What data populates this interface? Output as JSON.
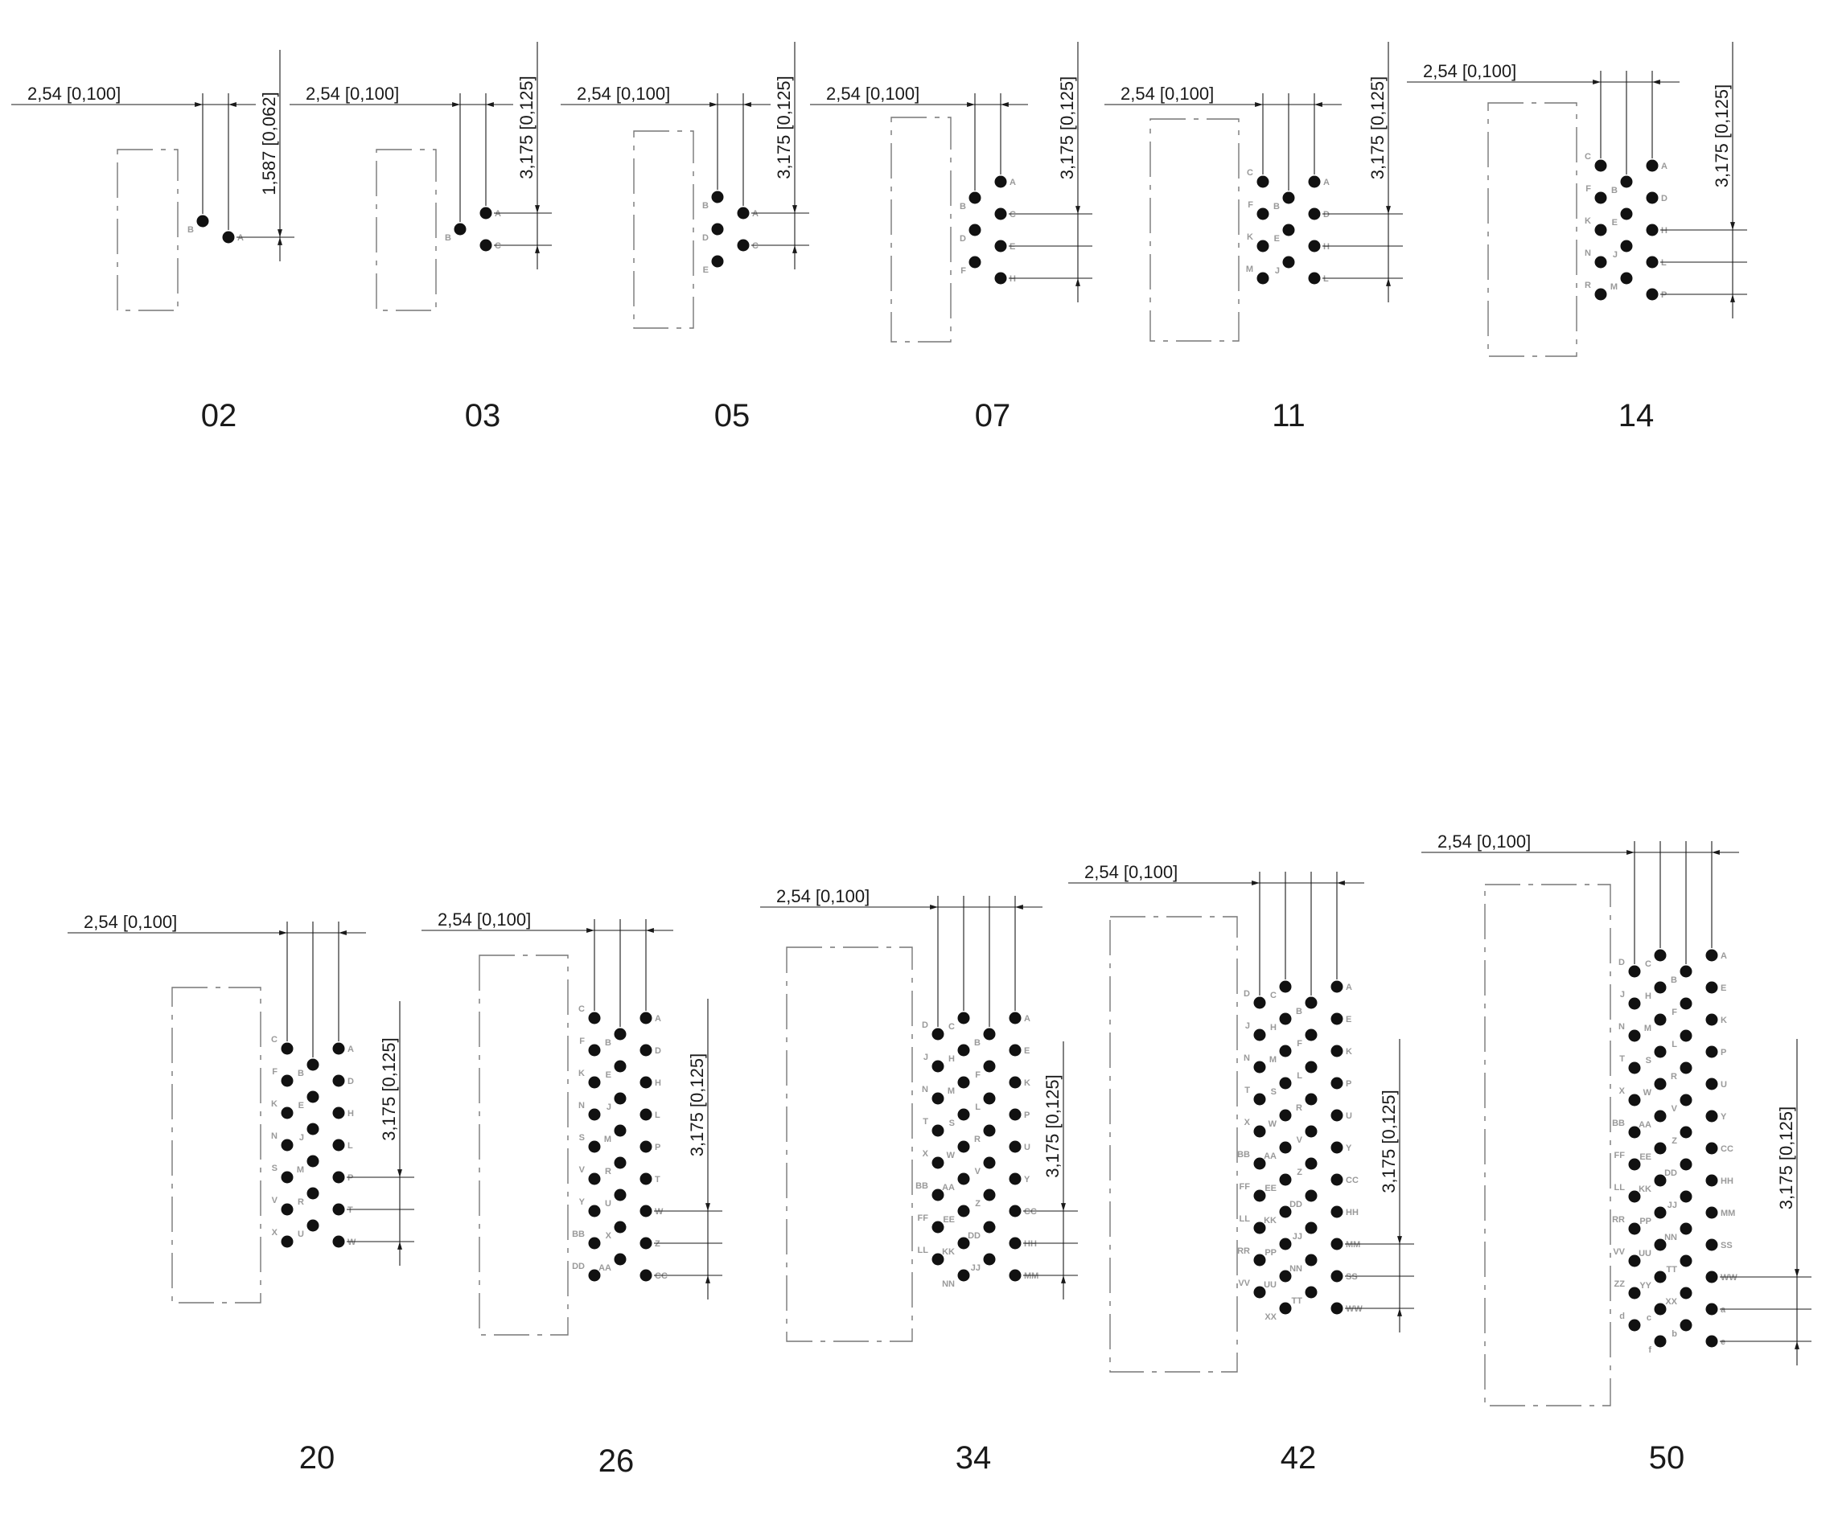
{
  "units": {
    "pitch_mm": "2,54",
    "pitch_in": "0,100"
  },
  "layouts": [
    {
      "size": "02",
      "cols": 2,
      "row_spacing": {
        "mm": "1,587",
        "in": "0,062"
      },
      "columns": [
        [
          "B"
        ],
        [
          "A"
        ]
      ]
    },
    {
      "size": "03",
      "cols": 2,
      "row_spacing": {
        "mm": "3,175",
        "in": "0,125"
      },
      "columns": [
        [
          "B"
        ],
        [
          "A",
          "C"
        ]
      ]
    },
    {
      "size": "05",
      "cols": 2,
      "row_spacing": {
        "mm": "3,175",
        "in": "0,125"
      },
      "columns": [
        [
          "B",
          "D",
          "E"
        ],
        [
          "A",
          "C"
        ]
      ]
    },
    {
      "size": "07",
      "cols": 2,
      "row_spacing": {
        "mm": "3,175",
        "in": "0,125"
      },
      "columns": [
        [
          "B",
          "D",
          "F"
        ],
        [
          "A",
          "C",
          "E",
          "H"
        ]
      ]
    },
    {
      "size": "11",
      "cols": 3,
      "row_spacing": {
        "mm": "3,175",
        "in": "0,125"
      },
      "columns": [
        [
          "C",
          "F",
          "K",
          "M"
        ],
        [
          "B",
          "E",
          "J"
        ],
        [
          "A",
          "D",
          "H",
          "L"
        ]
      ]
    },
    {
      "size": "14",
      "cols": 3,
      "row_spacing": {
        "mm": "3,175",
        "in": "0,125"
      },
      "columns": [
        [
          "C",
          "F",
          "K",
          "N",
          "R"
        ],
        [
          "B",
          "E",
          "J",
          "M"
        ],
        [
          "A",
          "D",
          "H",
          "L",
          "P"
        ]
      ]
    },
    {
      "size": "20",
      "cols": 3,
      "row_spacing": {
        "mm": "3,175",
        "in": "0,125"
      },
      "columns": [
        [
          "C",
          "F",
          "K",
          "N",
          "S",
          "V",
          "X"
        ],
        [
          "B",
          "E",
          "J",
          "M",
          "R",
          "U"
        ],
        [
          "A",
          "D",
          "H",
          "L",
          "P",
          "T",
          "W"
        ]
      ]
    },
    {
      "size": "26",
      "cols": 3,
      "row_spacing": {
        "mm": "3,175",
        "in": "0,125"
      },
      "columns": [
        [
          "C",
          "F",
          "K",
          "N",
          "S",
          "V",
          "Y",
          "BB",
          "DD"
        ],
        [
          "B",
          "E",
          "J",
          "M",
          "R",
          "U",
          "X",
          "AA"
        ],
        [
          "A",
          "D",
          "H",
          "L",
          "P",
          "T",
          "W",
          "Z",
          "CC"
        ]
      ]
    },
    {
      "size": "34",
      "cols": 4,
      "row_spacing": {
        "mm": "3,175",
        "in": "0,125"
      },
      "columns": [
        [
          "D",
          "J",
          "N",
          "T",
          "X",
          "BB",
          "FF",
          "LL"
        ],
        [
          "C",
          "H",
          "M",
          "S",
          "W",
          "AA",
          "EE",
          "KK",
          "NN"
        ],
        [
          "B",
          "F",
          "L",
          "R",
          "V",
          "Z",
          "DD",
          "JJ"
        ],
        [
          "A",
          "E",
          "K",
          "P",
          "U",
          "Y",
          "CC",
          "HH",
          "MM"
        ]
      ]
    },
    {
      "size": "42",
      "cols": 4,
      "row_spacing": {
        "mm": "3,175",
        "in": "0,125"
      },
      "columns": [
        [
          "D",
          "J",
          "N",
          "T",
          "X",
          "BB",
          "FF",
          "LL",
          "RR",
          "VV"
        ],
        [
          "C",
          "H",
          "M",
          "S",
          "W",
          "AA",
          "EE",
          "KK",
          "PP",
          "UU",
          "XX"
        ],
        [
          "B",
          "F",
          "L",
          "R",
          "V",
          "Z",
          "DD",
          "JJ",
          "NN",
          "TT"
        ],
        [
          "A",
          "E",
          "K",
          "P",
          "U",
          "Y",
          "CC",
          "HH",
          "MM",
          "SS",
          "WW"
        ]
      ]
    },
    {
      "size": "50",
      "cols": 4,
      "row_spacing": {
        "mm": "3,175",
        "in": "0,125"
      },
      "columns": [
        [
          "D",
          "J",
          "N",
          "T",
          "X",
          "BB",
          "FF",
          "LL",
          "RR",
          "VV",
          "ZZ",
          "d"
        ],
        [
          "C",
          "H",
          "M",
          "S",
          "W",
          "AA",
          "EE",
          "KK",
          "PP",
          "UU",
          "YY",
          "c",
          "f"
        ],
        [
          "B",
          "F",
          "L",
          "R",
          "V",
          "Z",
          "DD",
          "JJ",
          "NN",
          "TT",
          "XX",
          "b"
        ],
        [
          "A",
          "E",
          "K",
          "P",
          "U",
          "Y",
          "CC",
          "HH",
          "MM",
          "SS",
          "WW",
          "a",
          "e"
        ]
      ]
    }
  ]
}
